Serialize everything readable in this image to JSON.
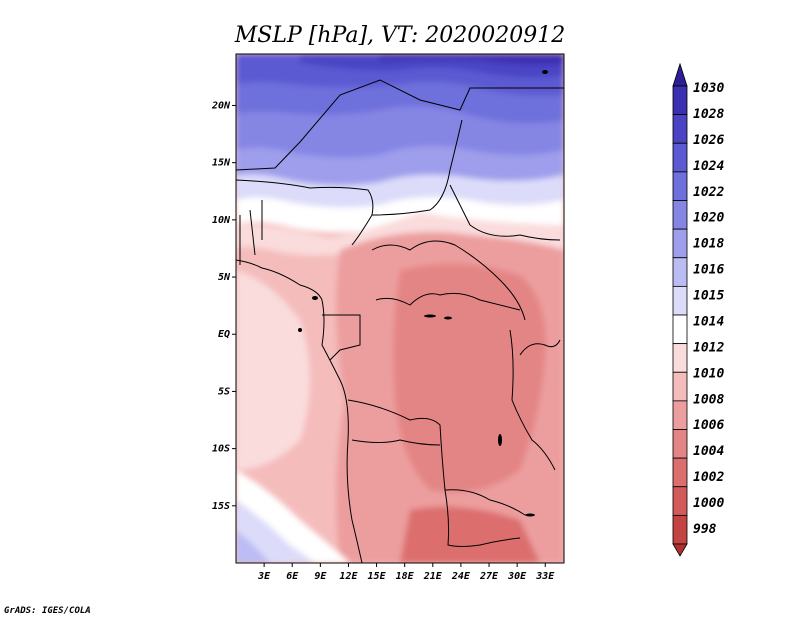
{
  "chart_data": {
    "type": "heatmap",
    "title": "MSLP [hPa], VT: 2020020912",
    "lon_range": [
      0,
      35
    ],
    "lat_range": [
      -20,
      24.5
    ],
    "x_ticks": [
      "3E",
      "6E",
      "9E",
      "12E",
      "15E",
      "18E",
      "21E",
      "24E",
      "27E",
      "30E",
      "33E"
    ],
    "y_ticks": [
      "20N",
      "15N",
      "10N",
      "5N",
      "EQ",
      "5S",
      "10S",
      "15S"
    ],
    "colorbar": {
      "levels": [
        "1030",
        "1028",
        "1026",
        "1024",
        "1022",
        "1020",
        "1018",
        "1016",
        "1015",
        "1014",
        "1012",
        "1010",
        "1008",
        "1006",
        "1004",
        "1002",
        "1000",
        "998"
      ],
      "colors": [
        "#2d1e96",
        "#3a2fb0",
        "#4a44c4",
        "#5b5ad2",
        "#6e70dc",
        "#8585e4",
        "#9e9eec",
        "#bcbcf4",
        "#dcdcfa",
        "#ffffff",
        "#fadcdc",
        "#f5bcbc",
        "#ec9e9e",
        "#e48585",
        "#dc6e6e",
        "#d25a5a",
        "#c44444",
        "#b02f2f"
      ]
    }
  },
  "credit": "GrADS: IGES/COLA"
}
